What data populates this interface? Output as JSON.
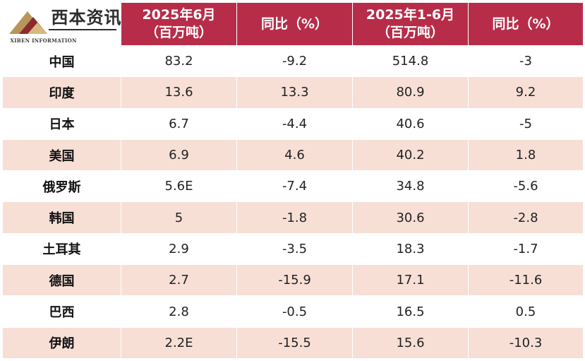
{
  "logo": {
    "brand": "西本资讯",
    "subtitle": "XIBEN INFORMATION"
  },
  "header": {
    "col1_line1": "2025年6月",
    "col1_line2": "（百万吨）",
    "col2": "同比（%）",
    "col3_line1": "2025年1-6月",
    "col3_line2": "（百万吨）",
    "col4": "同比（%）"
  },
  "rows": [
    {
      "country": "中国",
      "june": "83.2",
      "june_yoy": "-9.2",
      "ytd": "514.8",
      "ytd_yoy": "-3"
    },
    {
      "country": "印度",
      "june": "13.6",
      "june_yoy": "13.3",
      "ytd": "80.9",
      "ytd_yoy": "9.2"
    },
    {
      "country": "日本",
      "june": "6.7",
      "june_yoy": "-4.4",
      "ytd": "40.6",
      "ytd_yoy": "-5"
    },
    {
      "country": "美国",
      "june": "6.9",
      "june_yoy": "4.6",
      "ytd": "40.2",
      "ytd_yoy": "1.8"
    },
    {
      "country": "俄罗斯",
      "june": "5.6E",
      "june_yoy": "-7.4",
      "ytd": "34.8",
      "ytd_yoy": "-5.6"
    },
    {
      "country": "韩国",
      "june": "5",
      "june_yoy": "-1.8",
      "ytd": "30.6",
      "ytd_yoy": "-2.8"
    },
    {
      "country": "土耳其",
      "june": "2.9",
      "june_yoy": "-3.5",
      "ytd": "18.3",
      "ytd_yoy": "-1.7"
    },
    {
      "country": "德国",
      "june": "2.7",
      "june_yoy": "-15.9",
      "ytd": "17.1",
      "ytd_yoy": "-11.6"
    },
    {
      "country": "巴西",
      "june": "2.8",
      "june_yoy": "-0.5",
      "ytd": "16.5",
      "ytd_yoy": "0.5"
    },
    {
      "country": "伊朗",
      "june": "2.2E",
      "june_yoy": "-15.5",
      "ytd": "15.6",
      "ytd_yoy": "-10.3"
    }
  ],
  "colors": {
    "header_bg": "#b72d49",
    "header_text": "#ffffff",
    "stripe": "#f7dfd6",
    "row_bg": "#ffffff"
  }
}
